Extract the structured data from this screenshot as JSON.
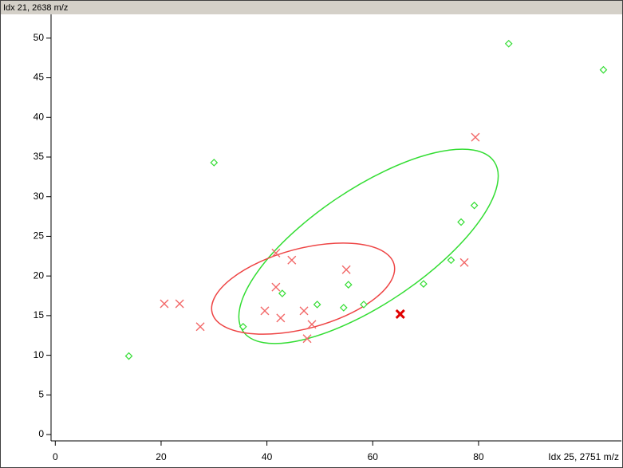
{
  "chart_data": {
    "type": "scatter",
    "ylabel": "Idx 21, 2638 m/z",
    "xlabel": "Idx 25, 2751 m/z",
    "xlim": [
      -0.8,
      107
    ],
    "ylim": [
      -0.8,
      53
    ],
    "xticks": [
      0,
      20,
      40,
      60,
      80
    ],
    "yticks": [
      0,
      5,
      10,
      15,
      20,
      25,
      30,
      35,
      40,
      45,
      50
    ],
    "series": [
      {
        "color": "#33dd33",
        "marker": "diamond",
        "x": [
          13.9,
          30.0,
          35.5,
          42.9,
          49.5,
          54.5,
          55.4,
          58.3,
          69.6,
          74.8,
          76.7,
          79.2,
          85.7,
          103.6
        ],
        "values": [
          9.9,
          34.3,
          13.6,
          17.8,
          16.4,
          16.0,
          18.9,
          16.4,
          19.0,
          22.0,
          26.8,
          28.9,
          49.3,
          46.0
        ]
      },
      {
        "color": "#f26868",
        "marker": "x",
        "x": [
          20.6,
          23.5,
          27.4,
          41.7,
          44.7,
          41.7,
          39.6,
          42.6,
          47.0,
          55.0,
          48.5,
          47.6,
          77.3,
          79.4
        ],
        "values": [
          16.5,
          16.5,
          13.6,
          22.9,
          22.0,
          18.6,
          15.6,
          14.7,
          15.6,
          20.8,
          13.9,
          12.1,
          21.7,
          37.5
        ]
      },
      {
        "color": "#e00000",
        "marker": "x-bold",
        "x": [
          65.2
        ],
        "values": [
          15.2
        ]
      }
    ]
  }
}
